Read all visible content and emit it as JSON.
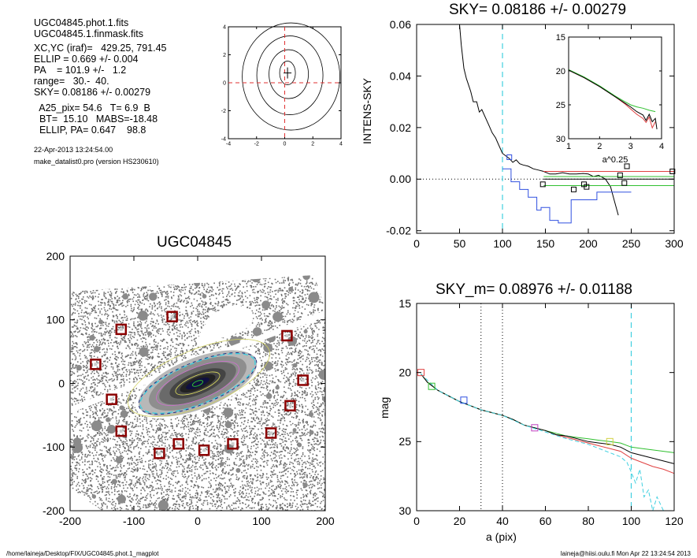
{
  "info": {
    "lines": [
      "UGC04845.phot.1.fits",
      "UGC04845.1.finmask.fits",
      "",
      "XC,YC (iraf)=   429.25, 791.45",
      "ELLIP = 0.669 +/- 0.004",
      "PA    = 101.9 +/-   1.2",
      "range=   30.-  40.",
      "SKY= 0.08186 +/- 0.00279",
      "",
      "  A25_pix= 54.6   T= 6.9  B",
      "  BT=  15.10   MABS=-18.48",
      "  ELLIP, PA= 0.647    98.8"
    ],
    "date": "22-Apr-2013 13:24:54.00",
    "program": "make_datalist0.pro (version HS230610)"
  },
  "footer": {
    "left": "/home/laineja/Desktop/FIX/UGC04845.phot.1_magplot",
    "right": "laineja@hiisi.oulu.fi  Mon Apr 22 13:24:54 2013"
  },
  "chart_data": [
    {
      "id": "contour",
      "type": "contour",
      "xlim": [
        -4,
        4
      ],
      "ylim": [
        -4,
        4
      ],
      "xticks": [
        -4,
        -2,
        0,
        2,
        4
      ],
      "yticks": [
        -4,
        -2,
        0,
        2,
        4
      ],
      "center": [
        0.2,
        0.7
      ],
      "colors": {
        "contour": "#000000",
        "guide": "#e03030"
      }
    },
    {
      "id": "image",
      "type": "scatter",
      "title": "UGC04845",
      "xlim": [
        -200,
        200
      ],
      "ylim": [
        -200,
        200
      ],
      "xticks": [
        -200,
        -100,
        0,
        100,
        200
      ],
      "yticks": [
        -200,
        -100,
        0,
        100,
        200
      ],
      "markers_x": [
        -120,
        -40,
        140,
        -160,
        165,
        -135,
        145,
        -120,
        -30,
        55,
        115,
        -60,
        10
      ],
      "markers_y": [
        85,
        105,
        75,
        30,
        5,
        -25,
        -35,
        -75,
        -95,
        -95,
        -78,
        -110,
        -105
      ],
      "colors": {
        "marker": "#8b0000",
        "pixels": "#6e6e6e"
      }
    },
    {
      "id": "sky",
      "type": "line",
      "title": "SKY= 0.08186 +/- 0.00279",
      "ylabel": "INTENS-SKY",
      "xlim": [
        0,
        300
      ],
      "ylim": [
        -0.021,
        0.06
      ],
      "xticks": [
        0,
        50,
        100,
        150,
        200,
        250,
        300
      ],
      "yticks": [
        -0.02,
        0.0,
        0.02,
        0.04,
        0.06
      ],
      "ytick_labels": [
        "-0.02",
        "0.00",
        "0.02",
        "0.04",
        "0.06"
      ],
      "vline": 100,
      "series": [
        {
          "color": "#000000",
          "x": [
            50,
            52,
            55,
            58,
            60,
            63,
            66,
            70,
            73,
            76,
            80,
            84,
            88,
            92,
            96,
            100,
            104,
            108,
            112,
            116,
            120,
            124,
            130,
            136,
            142,
            148,
            155,
            162,
            170,
            178,
            186,
            194,
            200,
            206,
            212,
            220,
            226,
            230,
            235
          ],
          "y": [
            0.06,
            0.052,
            0.043,
            0.039,
            0.037,
            0.034,
            0.03,
            0.03,
            0.026,
            0.027,
            0.024,
            0.021,
            0.018,
            0.016,
            0.013,
            0.01,
            0.009,
            0.008,
            0.0065,
            0.0075,
            0.006,
            0.0055,
            0.005,
            0.004,
            0.0035,
            0.003,
            0.002,
            0.002,
            0.0025,
            0.002,
            0.002,
            0.0022,
            0.002,
            0.001,
            0.0015,
            0.0,
            -0.003,
            -0.008,
            -0.014
          ]
        },
        {
          "color": "#e04040",
          "x": [
            148,
            300
          ],
          "y": [
            0.003,
            0.003
          ]
        },
        {
          "color": "#30c030",
          "x": [
            148,
            300
          ],
          "y": [
            0.001,
            0.001
          ]
        },
        {
          "color": "#000000",
          "x": [
            148,
            300
          ],
          "y": [
            0.0,
            0.0
          ]
        },
        {
          "color": "#30c030",
          "x": [
            148,
            300
          ],
          "y": [
            -0.0025,
            -0.0025
          ]
        },
        {
          "color": "#3050e0",
          "x": [
            100,
            110,
            110,
            120,
            120,
            130,
            130,
            140,
            140,
            145,
            145,
            155,
            155,
            165,
            165,
            180,
            180,
            210,
            210,
            250
          ],
          "y": [
            0.004,
            0.004,
            -0.001,
            -0.001,
            -0.004,
            -0.004,
            -0.007,
            -0.007,
            -0.012,
            -0.012,
            -0.011,
            -0.011,
            -0.016,
            -0.016,
            -0.017,
            -0.017,
            -0.008,
            -0.008,
            -0.005,
            -0.005
          ]
        }
      ],
      "markers": [
        {
          "x": 108,
          "y": 0.0085,
          "color": "#3050e0"
        },
        {
          "x": 147,
          "y": -0.002,
          "color": "#000000"
        },
        {
          "x": 183,
          "y": -0.004,
          "color": "#000000"
        },
        {
          "x": 195,
          "y": -0.002,
          "color": "#000000"
        },
        {
          "x": 198,
          "y": -0.003,
          "color": "#000000"
        },
        {
          "x": 237,
          "y": 0.0015,
          "color": "#000000"
        },
        {
          "x": 242,
          "y": -0.0015,
          "color": "#000000"
        },
        {
          "x": 245,
          "y": 0.005,
          "color": "#000000"
        },
        {
          "x": 298,
          "y": 0.003,
          "color": "#000000"
        }
      ],
      "inset": {
        "xlabel": "a^0.25",
        "xlim": [
          1,
          4
        ],
        "ylim": [
          30,
          15
        ],
        "xticks": [
          1,
          2,
          3,
          4
        ],
        "yticks": [
          15,
          20,
          25,
          30
        ],
        "series": [
          {
            "color": "#e04040",
            "x": [
              1,
              1.5,
              2.0,
              2.5,
              2.8,
              3.0,
              3.2,
              3.4,
              3.5,
              3.6,
              3.7,
              3.8
            ],
            "y": [
              19.9,
              21.0,
              22.3,
              23.8,
              24.8,
              25.6,
              26.4,
              27.0,
              27.6,
              26.8,
              28.4,
              27.5
            ]
          },
          {
            "color": "#30c030",
            "x": [
              1,
              1.5,
              2.0,
              2.5,
              2.8,
              3.0,
              3.2,
              3.4,
              3.6,
              3.8
            ],
            "y": [
              19.8,
              20.9,
              22.2,
              23.7,
              24.5,
              25.0,
              25.3,
              25.5,
              25.8,
              26.0
            ]
          },
          {
            "color": "#000000",
            "x": [
              1,
              1.5,
              2.0,
              2.5,
              2.8,
              3.0,
              3.2,
              3.4,
              3.5,
              3.6,
              3.7,
              3.8,
              3.85
            ],
            "y": [
              19.9,
              21.0,
              22.3,
              23.8,
              24.7,
              25.3,
              26.0,
              26.5,
              27.3,
              26.4,
              27.5,
              27.0,
              28.6
            ]
          }
        ]
      }
    },
    {
      "id": "mag",
      "type": "line",
      "title": "SKY_m=  0.08976 +/- 0.01188",
      "xlabel": "a (pix)",
      "ylabel": "mag",
      "xlim": [
        0,
        120
      ],
      "ylim": [
        30,
        15
      ],
      "xticks": [
        0,
        20,
        40,
        60,
        80,
        100,
        120
      ],
      "yticks": [
        15,
        20,
        25,
        30
      ],
      "vlines_dotted": [
        30,
        40
      ],
      "vline_dashed": 100,
      "series": [
        {
          "color": "#e04040",
          "x": [
            2,
            5,
            10,
            15,
            20,
            25,
            30,
            35,
            40,
            45,
            50,
            55,
            60,
            65,
            70,
            75,
            80,
            85,
            90,
            95,
            100,
            105,
            110,
            115,
            120
          ],
          "y": [
            20.1,
            20.7,
            21.3,
            21.7,
            22.1,
            22.4,
            22.7,
            22.9,
            23.1,
            23.4,
            23.8,
            24.0,
            24.2,
            24.5,
            24.7,
            24.9,
            25.1,
            25.3,
            25.5,
            25.7,
            26.2,
            26.5,
            26.8,
            27.0,
            27.3
          ]
        },
        {
          "color": "#30c030",
          "x": [
            2,
            5,
            10,
            15,
            20,
            25,
            30,
            35,
            40,
            45,
            50,
            55,
            60,
            65,
            70,
            75,
            80,
            85,
            90,
            95,
            100,
            105,
            110,
            115,
            120
          ],
          "y": [
            20.1,
            20.7,
            21.3,
            21.7,
            22.1,
            22.4,
            22.7,
            22.9,
            23.1,
            23.4,
            23.8,
            24.0,
            24.2,
            24.4,
            24.6,
            24.7,
            24.8,
            24.9,
            25.0,
            25.1,
            25.4,
            25.5,
            25.6,
            25.7,
            25.8
          ]
        },
        {
          "color": "#000000",
          "x": [
            2,
            5,
            10,
            15,
            20,
            25,
            30,
            35,
            40,
            45,
            50,
            55,
            60,
            65,
            70,
            75,
            80,
            85,
            90,
            95,
            100,
            105,
            110,
            115,
            120
          ],
          "y": [
            20.1,
            20.7,
            21.3,
            21.7,
            22.1,
            22.4,
            22.7,
            22.9,
            23.1,
            23.4,
            23.8,
            24.0,
            24.2,
            24.5,
            24.6,
            24.8,
            25.0,
            25.1,
            25.2,
            25.4,
            25.8,
            26.0,
            26.2,
            26.4,
            26.6
          ]
        },
        {
          "color": "#40d0e0",
          "dashed": true,
          "x": [
            2,
            10,
            20,
            30,
            40,
            50,
            60,
            70,
            80,
            85,
            90,
            95,
            98,
            100,
            102,
            104,
            106,
            108,
            110,
            112,
            115
          ],
          "y": [
            20.1,
            21.3,
            22.1,
            22.7,
            23.1,
            23.8,
            24.3,
            24.8,
            25.2,
            25.5,
            25.8,
            26.1,
            26.5,
            27.2,
            28.0,
            27.0,
            29.0,
            28.5,
            30.0,
            29.0,
            30.0
          ]
        }
      ],
      "markers": [
        {
          "x": 2,
          "y": 20.0,
          "color": "#e04040"
        },
        {
          "x": 7,
          "y": 21.0,
          "color": "#30c030"
        },
        {
          "x": 22,
          "y": 22.0,
          "color": "#3050e0"
        },
        {
          "x": 55,
          "y": 24.0,
          "color": "#c040c0"
        },
        {
          "x": 90,
          "y": 25.0,
          "color": "#d0d040"
        }
      ]
    }
  ]
}
